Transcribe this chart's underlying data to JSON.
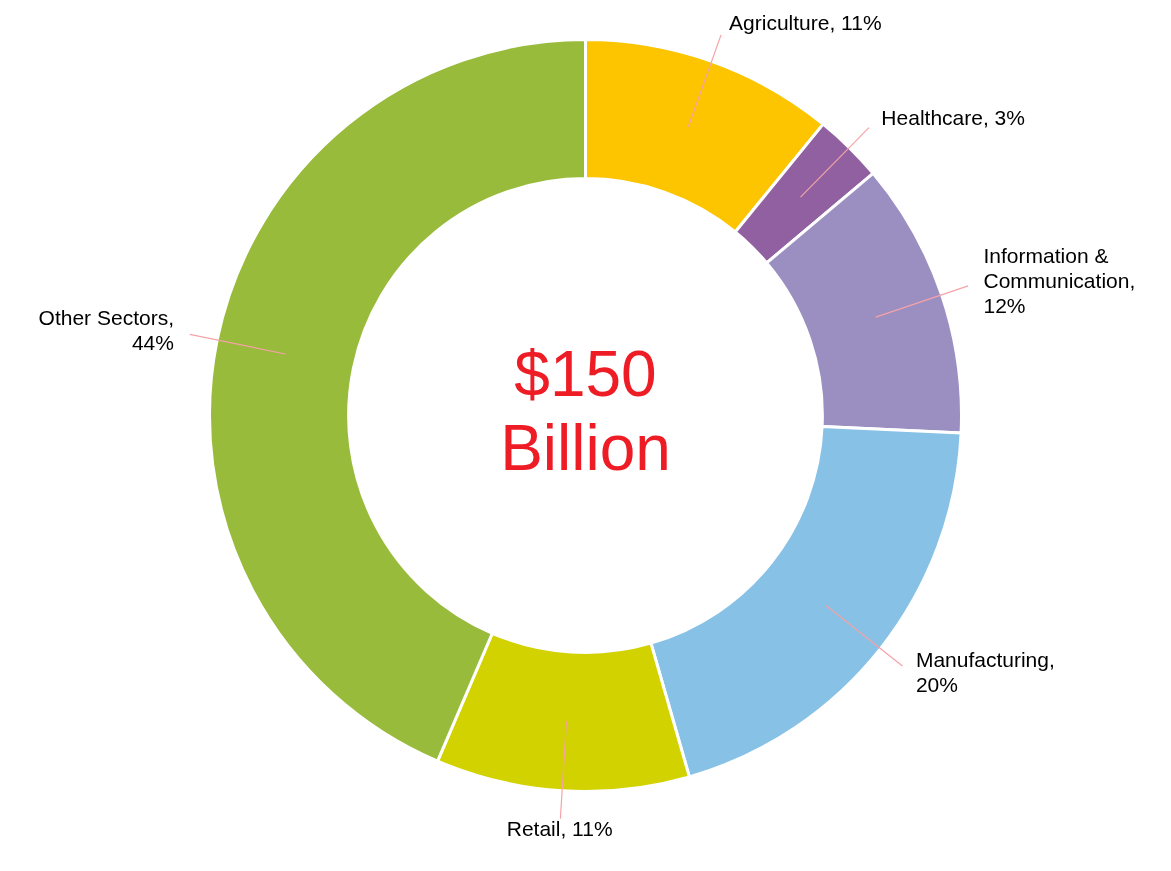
{
  "chart_data": {
    "type": "donut",
    "categories": [
      "Agriculture",
      "Healthcare",
      "Information & Communication",
      "Manufacturing",
      "Retail",
      "Other Sectors"
    ],
    "values": [
      11,
      3,
      12,
      20,
      11,
      44
    ],
    "colors": [
      "#fcc500",
      "#9160a0",
      "#9b8fc2",
      "#87c1e6",
      "#d2d200",
      "#98bb3b"
    ],
    "value_labels": [
      ", 11%",
      ", 3%",
      ", 12%",
      ", 20%",
      ", 11%",
      ", 44%"
    ],
    "annotations": [
      "$150 Billion"
    ],
    "legend": false
  }
}
